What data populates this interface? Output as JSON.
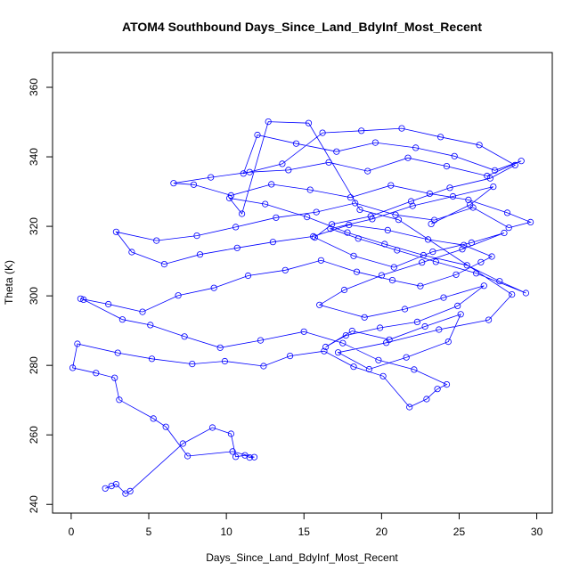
{
  "chart_data": {
    "type": "scatter",
    "title": "ATOM4 Southbound Days_Since_Land_BdyInf_Most_Recent",
    "xlabel": "Days_Since_Land_BdyInf_Most_Recent",
    "ylabel": "Theta (K)",
    "xlim": [
      -1.2,
      31.0
    ],
    "ylim": [
      237.5,
      370.0
    ],
    "xticks": [
      0,
      5,
      10,
      15,
      20,
      25,
      30
    ],
    "yticks": [
      240,
      260,
      280,
      300,
      320,
      340,
      360
    ],
    "grid": false,
    "marker": "open-circle",
    "connect_points": true,
    "series": [
      {
        "color": "#0000ff",
        "x": [
          2.2,
          2.6,
          2.9,
          3.5,
          3.8,
          7.2,
          9.1,
          10.3,
          10.6,
          11.2,
          11.5,
          11.8,
          10.4,
          7.5,
          6.1,
          5.3,
          3.1,
          2.8,
          1.6,
          0.1,
          0.4,
          3.0,
          5.2,
          7.8,
          9.9,
          12.4,
          14.1,
          16.3,
          18.2,
          20.1,
          21.8,
          22.9,
          23.6,
          24.2,
          22.1,
          19.8,
          17.5,
          15.0,
          12.2,
          9.6,
          7.3,
          5.1,
          3.3,
          0.8,
          0.6,
          2.4,
          4.6,
          6.9,
          9.2,
          11.4,
          13.8,
          16.1,
          18.4,
          20.7,
          22.5,
          24.8,
          26.4,
          27.1,
          25.3,
          23.0,
          20.4,
          17.9,
          15.6,
          13.0,
          10.7,
          8.3,
          6.0,
          3.9,
          2.9,
          5.5,
          8.1,
          10.6,
          13.2,
          15.8,
          18.3,
          20.9,
          23.4,
          25.9,
          28.2,
          29.6,
          28.1,
          25.6,
          23.1,
          20.6,
          18.0,
          15.4,
          12.9,
          10.3,
          7.9,
          6.6,
          9.0,
          11.5,
          14.0,
          16.6,
          19.1,
          21.7,
          24.2,
          26.8,
          29.0,
          27.3,
          24.7,
          22.2,
          19.6,
          17.1,
          14.5,
          12.0,
          11.1,
          13.6,
          16.2,
          18.7,
          21.3,
          23.8,
          26.3,
          28.6,
          27.0,
          24.4,
          21.9,
          19.3,
          16.8,
          15.7,
          18.2,
          20.8,
          23.3,
          25.8,
          27.9,
          25.2,
          22.6,
          20.0,
          17.6,
          16.0,
          18.9,
          21.5,
          24.0,
          26.6,
          24.9,
          22.3,
          19.9,
          17.7,
          16.4,
          18.1,
          20.5,
          22.8,
          25.1,
          24.3,
          21.6,
          19.2,
          17.2,
          20.3,
          23.7,
          26.9,
          28.4,
          21.1,
          18.6,
          15.3,
          12.7,
          11.0,
          10.2,
          12.5,
          15.2,
          17.8,
          20.2,
          22.7,
          25.5,
          27.6,
          29.3,
          26.1,
          23.5,
          21.0,
          18.5,
          16.7,
          19.4,
          22.0,
          24.6,
          27.2,
          25.7,
          23.2
        ],
        "y": [
          244.6,
          245.3,
          245.8,
          243.1,
          243.8,
          257.5,
          262.1,
          260.3,
          253.7,
          254.1,
          253.5,
          253.6,
          255.2,
          253.9,
          262.3,
          264.7,
          270.1,
          276.4,
          277.8,
          279.3,
          286.2,
          283.6,
          281.9,
          280.4,
          281.2,
          279.8,
          282.7,
          284.1,
          279.6,
          276.9,
          268.0,
          270.3,
          273.2,
          274.5,
          278.8,
          281.5,
          286.4,
          289.7,
          287.2,
          285.1,
          288.3,
          291.6,
          293.2,
          298.9,
          299.2,
          297.6,
          295.4,
          300.1,
          302.3,
          305.8,
          307.4,
          310.2,
          306.9,
          304.5,
          302.8,
          306.1,
          309.7,
          311.3,
          314.6,
          316.2,
          318.9,
          320.4,
          317.1,
          315.5,
          313.8,
          311.9,
          309.1,
          312.6,
          318.4,
          315.9,
          317.3,
          319.8,
          322.5,
          324.1,
          326.7,
          323.3,
          321.8,
          325.4,
          319.6,
          321.2,
          323.9,
          327.6,
          329.4,
          331.8,
          328.3,
          330.5,
          332.1,
          328.9,
          332.0,
          332.4,
          334.1,
          335.6,
          336.2,
          338.4,
          335.9,
          339.7,
          337.3,
          334.5,
          338.8,
          336.1,
          340.2,
          342.6,
          344.1,
          341.5,
          343.8,
          346.3,
          335.2,
          338.0,
          346.9,
          347.5,
          348.2,
          345.7,
          343.4,
          337.6,
          333.8,
          331.1,
          327.2,
          322.9,
          320.6,
          316.8,
          311.5,
          308.2,
          312.7,
          315.3,
          318.1,
          313.4,
          309.6,
          305.9,
          301.7,
          297.4,
          293.8,
          296.2,
          299.5,
          302.9,
          297.1,
          292.5,
          290.8,
          288.6,
          285.3,
          289.9,
          287.4,
          291.2,
          294.7,
          286.8,
          282.3,
          278.9,
          283.7,
          286.5,
          290.3,
          293.1,
          300.4,
          321.9,
          324.8,
          349.7,
          350.1,
          323.6,
          328.1,
          326.4,
          322.7,
          318.2,
          314.9,
          311.7,
          308.8,
          304.2,
          300.8,
          306.5,
          309.8,
          313.1,
          316.5,
          319.3,
          322.1,
          325.9,
          328.6,
          331.4,
          326.2,
          320.7
        ]
      }
    ]
  }
}
